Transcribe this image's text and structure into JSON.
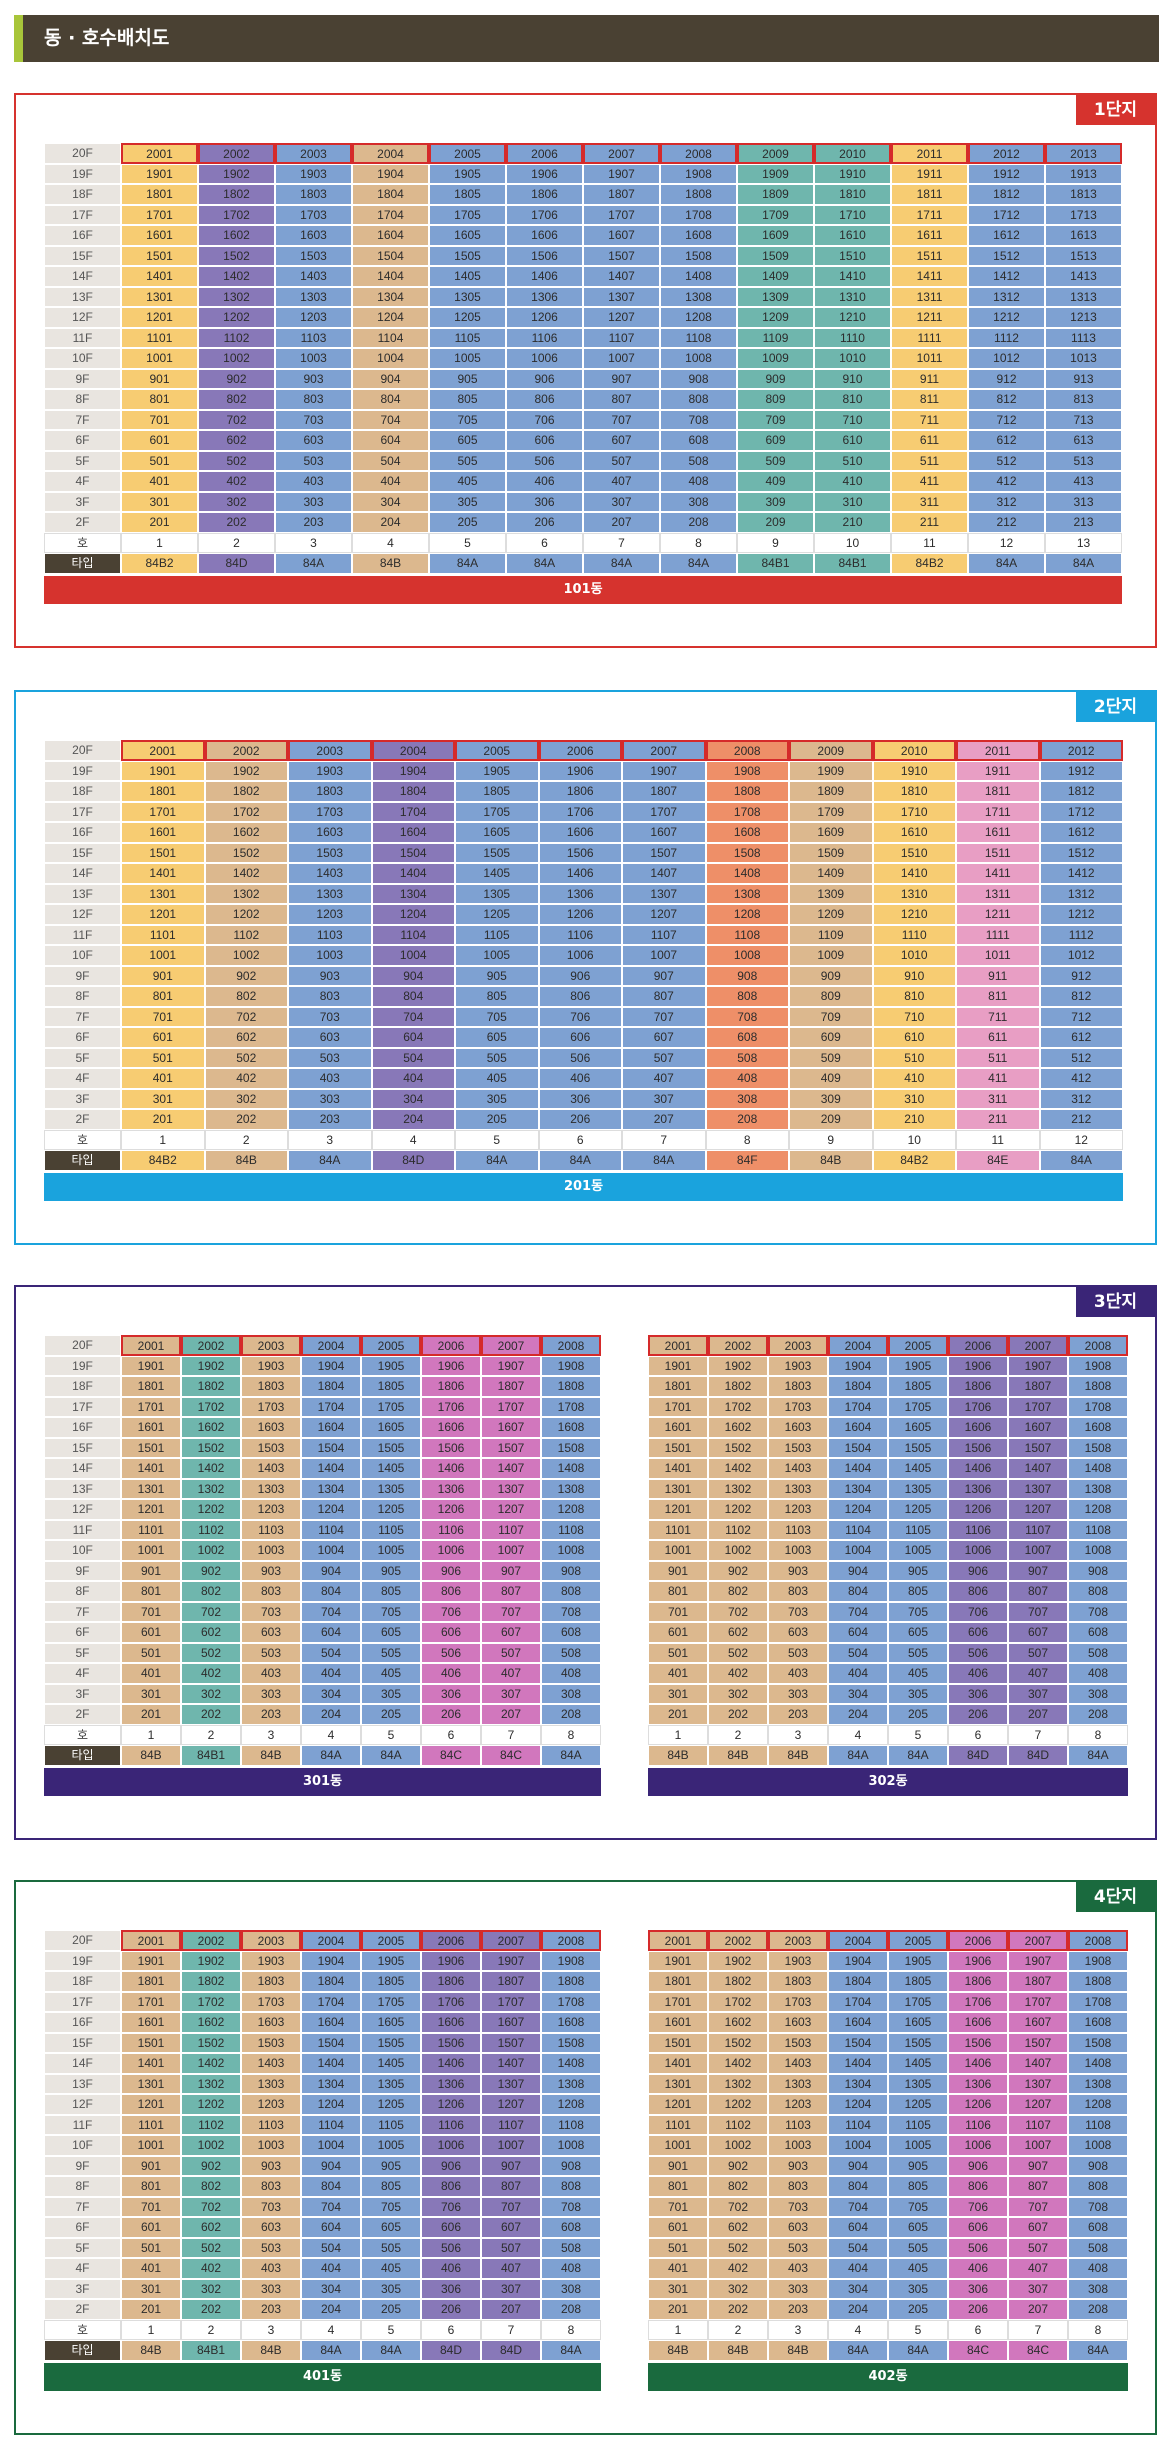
{
  "page": {
    "title": "동 · 호수배치도"
  },
  "colors": {
    "A": "#7ea1d2",
    "B": "#dcb88e",
    "B2": "#f7cc72",
    "D": "#8878b8",
    "B1": "#6fb6ad",
    "C": "#d177bd",
    "E": "#e89ec4",
    "F": "#ee8f68"
  },
  "labels": {
    "floor_header": "호",
    "type_header": "타입"
  },
  "sections": [
    {
      "tag": "1단지",
      "accent": "#d6332e",
      "blocks": [
        {
          "building": "101동",
          "bar_color": "#d6332e",
          "units": [
            {
              "type": "84B2",
              "c": "B2"
            },
            {
              "type": "84D",
              "c": "D"
            },
            {
              "type": "84A",
              "c": "A"
            },
            {
              "type": "84B",
              "c": "B"
            },
            {
              "type": "84A",
              "c": "A"
            },
            {
              "type": "84A",
              "c": "A"
            },
            {
              "type": "84A",
              "c": "A"
            },
            {
              "type": "84A",
              "c": "A"
            },
            {
              "type": "84B1",
              "c": "B1"
            },
            {
              "type": "84B1",
              "c": "B1"
            },
            {
              "type": "84B2",
              "c": "B2"
            },
            {
              "type": "84A",
              "c": "A"
            },
            {
              "type": "84A",
              "c": "A"
            }
          ]
        }
      ]
    },
    {
      "tag": "2단지",
      "accent": "#1aa3dd",
      "blocks": [
        {
          "building": "201동",
          "bar_color": "#1aa3dd",
          "units": [
            {
              "type": "84B2",
              "c": "B2"
            },
            {
              "type": "84B",
              "c": "B"
            },
            {
              "type": "84A",
              "c": "A"
            },
            {
              "type": "84D",
              "c": "D"
            },
            {
              "type": "84A",
              "c": "A"
            },
            {
              "type": "84A",
              "c": "A"
            },
            {
              "type": "84A",
              "c": "A"
            },
            {
              "type": "84F",
              "c": "F"
            },
            {
              "type": "84B",
              "c": "B"
            },
            {
              "type": "84B2",
              "c": "B2"
            },
            {
              "type": "84E",
              "c": "E"
            },
            {
              "type": "84A",
              "c": "A"
            }
          ]
        }
      ]
    },
    {
      "tag": "3단지",
      "accent": "#3a2577",
      "blocks": [
        {
          "building": "301동",
          "bar_color": "#3a2577",
          "units": [
            {
              "type": "84B",
              "c": "B"
            },
            {
              "type": "84B1",
              "c": "B1"
            },
            {
              "type": "84B",
              "c": "B"
            },
            {
              "type": "84A",
              "c": "A"
            },
            {
              "type": "84A",
              "c": "A"
            },
            {
              "type": "84C",
              "c": "C"
            },
            {
              "type": "84C",
              "c": "C"
            },
            {
              "type": "84A",
              "c": "A"
            }
          ]
        },
        {
          "building": "302동",
          "bar_color": "#3a2577",
          "units": [
            {
              "type": "84B",
              "c": "B"
            },
            {
              "type": "84B",
              "c": "B"
            },
            {
              "type": "84B",
              "c": "B"
            },
            {
              "type": "84A",
              "c": "A"
            },
            {
              "type": "84A",
              "c": "A"
            },
            {
              "type": "84D",
              "c": "D"
            },
            {
              "type": "84D",
              "c": "D"
            },
            {
              "type": "84A",
              "c": "A"
            }
          ]
        }
      ]
    },
    {
      "tag": "4단지",
      "accent": "#1a6a3e",
      "blocks": [
        {
          "building": "401동",
          "bar_color": "#1a6a3e",
          "units": [
            {
              "type": "84B",
              "c": "B"
            },
            {
              "type": "84B1",
              "c": "B1"
            },
            {
              "type": "84B",
              "c": "B"
            },
            {
              "type": "84A",
              "c": "A"
            },
            {
              "type": "84A",
              "c": "A"
            },
            {
              "type": "84D",
              "c": "D"
            },
            {
              "type": "84D",
              "c": "D"
            },
            {
              "type": "84A",
              "c": "A"
            }
          ]
        },
        {
          "building": "402동",
          "bar_color": "#1a6a3e",
          "units": [
            {
              "type": "84B",
              "c": "B"
            },
            {
              "type": "84B",
              "c": "B"
            },
            {
              "type": "84B",
              "c": "B"
            },
            {
              "type": "84A",
              "c": "A"
            },
            {
              "type": "84A",
              "c": "A"
            },
            {
              "type": "84C",
              "c": "C"
            },
            {
              "type": "84C",
              "c": "C"
            },
            {
              "type": "84A",
              "c": "A"
            }
          ]
        }
      ]
    }
  ]
}
